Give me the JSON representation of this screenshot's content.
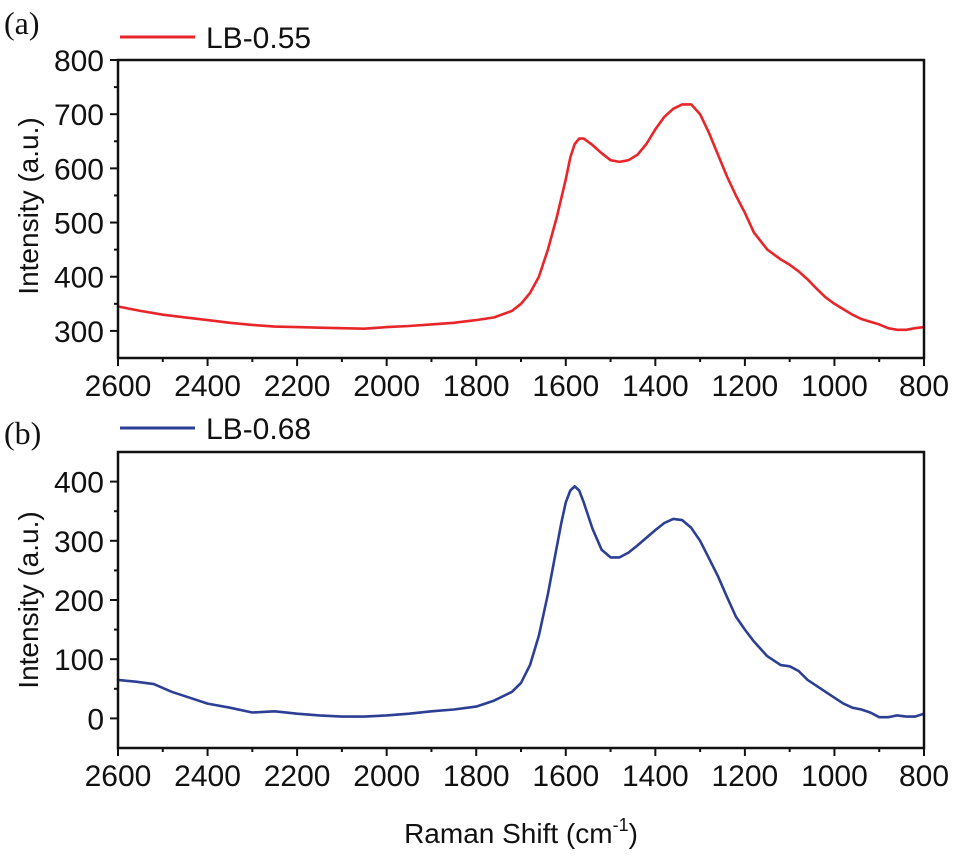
{
  "chart_data": [
    {
      "type": "line",
      "panel_label": "(a)",
      "title": "",
      "xlabel": "Raman Shift (cm",
      "xlabel_sup": "-1",
      "xlabel_close": ")",
      "ylabel": "Intensity (a.u.)",
      "xlim": [
        2600,
        800
      ],
      "ylim": [
        250,
        800
      ],
      "x_ticks": [
        2600,
        2400,
        2200,
        2000,
        1800,
        1600,
        1400,
        1200,
        1000,
        800
      ],
      "y_ticks": [
        300,
        400,
        500,
        600,
        700,
        800
      ],
      "legend": {
        "placement": "top-left",
        "entries": [
          "LB-0.55"
        ]
      },
      "series": [
        {
          "name": "LB-0.55",
          "color": "#e8262a",
          "x": [
            2600,
            2550,
            2500,
            2450,
            2400,
            2350,
            2300,
            2250,
            2200,
            2150,
            2100,
            2050,
            2000,
            1950,
            1900,
            1850,
            1800,
            1760,
            1720,
            1700,
            1680,
            1660,
            1640,
            1620,
            1600,
            1590,
            1580,
            1570,
            1560,
            1540,
            1520,
            1500,
            1480,
            1460,
            1440,
            1420,
            1400,
            1380,
            1360,
            1340,
            1320,
            1300,
            1280,
            1260,
            1240,
            1220,
            1200,
            1180,
            1150,
            1120,
            1100,
            1080,
            1060,
            1040,
            1020,
            1000,
            980,
            960,
            940,
            920,
            900,
            880,
            860,
            840,
            820,
            800
          ],
          "values": [
            345,
            337,
            330,
            325,
            320,
            315,
            311,
            308,
            307,
            306,
            305,
            304,
            307,
            309,
            312,
            315,
            320,
            325,
            337,
            350,
            370,
            400,
            450,
            510,
            580,
            620,
            645,
            655,
            655,
            643,
            628,
            615,
            612,
            615,
            625,
            645,
            672,
            695,
            710,
            718,
            718,
            700,
            665,
            625,
            585,
            550,
            518,
            482,
            450,
            432,
            422,
            410,
            395,
            378,
            362,
            350,
            340,
            330,
            322,
            317,
            312,
            305,
            302,
            302,
            305,
            307
          ]
        }
      ]
    },
    {
      "type": "line",
      "panel_label": "(b)",
      "title": "",
      "xlabel": "Raman Shift (cm",
      "xlabel_sup": "-1",
      "xlabel_close": ")",
      "ylabel": "Intensity (a.u.)",
      "xlim": [
        2600,
        800
      ],
      "ylim": [
        -50,
        450
      ],
      "x_ticks": [
        2600,
        2400,
        2200,
        2000,
        1800,
        1600,
        1400,
        1200,
        1000,
        800
      ],
      "y_ticks": [
        0,
        100,
        200,
        300,
        400
      ],
      "legend": {
        "placement": "top-left",
        "entries": [
          "LB-0.68"
        ]
      },
      "series": [
        {
          "name": "LB-0.68",
          "color": "#2c3f94",
          "x": [
            2600,
            2560,
            2520,
            2480,
            2440,
            2400,
            2350,
            2300,
            2250,
            2200,
            2150,
            2100,
            2050,
            2000,
            1950,
            1900,
            1850,
            1800,
            1760,
            1720,
            1700,
            1680,
            1660,
            1640,
            1620,
            1610,
            1600,
            1590,
            1580,
            1570,
            1560,
            1540,
            1520,
            1500,
            1480,
            1460,
            1440,
            1420,
            1400,
            1380,
            1360,
            1340,
            1320,
            1300,
            1280,
            1260,
            1240,
            1220,
            1200,
            1180,
            1150,
            1120,
            1100,
            1080,
            1060,
            1040,
            1020,
            1000,
            980,
            960,
            940,
            920,
            900,
            880,
            860,
            840,
            820,
            800
          ],
          "values": [
            65,
            62,
            58,
            45,
            35,
            25,
            18,
            10,
            12,
            8,
            5,
            3,
            3,
            5,
            8,
            12,
            15,
            20,
            30,
            45,
            60,
            90,
            140,
            210,
            290,
            330,
            365,
            385,
            392,
            385,
            365,
            320,
            285,
            272,
            272,
            280,
            292,
            305,
            318,
            330,
            337,
            335,
            322,
            300,
            270,
            240,
            205,
            172,
            150,
            130,
            105,
            90,
            88,
            80,
            65,
            55,
            45,
            35,
            25,
            18,
            15,
            10,
            2,
            2,
            5,
            3,
            3,
            8
          ]
        }
      ]
    }
  ]
}
